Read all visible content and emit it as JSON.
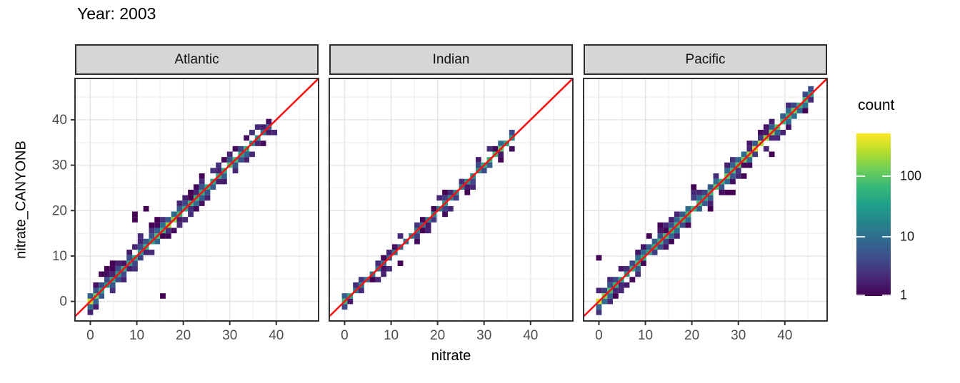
{
  "title": "Year: 2003",
  "axes": {
    "x": {
      "label": "nitrate",
      "ticks": [
        0,
        10,
        20,
        30,
        40
      ],
      "range": [
        -3.3,
        49.1
      ]
    },
    "y": {
      "label": "nitrate_CANYONB",
      "ticks": [
        0,
        10,
        20,
        30,
        40
      ],
      "range": [
        -4.3,
        49.1
      ]
    }
  },
  "legend": {
    "title": "count",
    "scale": "log10",
    "max": 500,
    "ticks": [
      {
        "label": "100",
        "value": 100
      },
      {
        "label": "10",
        "value": 10
      },
      {
        "label": "1",
        "value": 1
      }
    ]
  },
  "colors": {
    "identity_line": "#f51414",
    "panel_border": "#333333",
    "strip_fill": "#d6d6d6",
    "strip_border": "#2e2e2e",
    "grid_major": "#e3e3e3",
    "grid_minor": "#eeeeee",
    "axis_text": "#4d4d4d",
    "tick_mark": "#333333",
    "viridis": [
      "#440154",
      "#482878",
      "#3e4989",
      "#31688e",
      "#26828e",
      "#1f9e89",
      "#35b779",
      "#6ece58",
      "#b5de2b",
      "#fde725"
    ]
  },
  "chart_data": {
    "type": "heatmap",
    "description": "2D bin counts of nitrate_CANYONB vs nitrate per ocean basin, viridis log10 colour scale, red y=x identity line",
    "facet_variable": "ocean",
    "binwidth": 1.2,
    "count_max": 500,
    "identity_line": "y = x",
    "facets": [
      {
        "name": "Atlantic",
        "seed": 11,
        "diagonal_range": [
          -0.6,
          38.4
        ],
        "flank": 0.9,
        "far": 0.5,
        "wide": 0.3,
        "spine": [
          [
            -0.6,
            450
          ],
          [
            0.6,
            200
          ],
          [
            2,
            60
          ],
          [
            4,
            35
          ],
          [
            6,
            40
          ],
          [
            8,
            55
          ],
          [
            10,
            45
          ],
          [
            12,
            50
          ],
          [
            14,
            60
          ],
          [
            16,
            90
          ],
          [
            17.4,
            280
          ],
          [
            18.6,
            80
          ],
          [
            20,
            60
          ],
          [
            22,
            55
          ],
          [
            24,
            45
          ],
          [
            26,
            50
          ],
          [
            28,
            60
          ],
          [
            30,
            65
          ],
          [
            32,
            60
          ],
          [
            34,
            45
          ],
          [
            36,
            20
          ],
          [
            38.4,
            8
          ]
        ],
        "outliers": [
          [
            15.6,
            1.4,
            1
          ],
          [
            9.8,
            17.6,
            1
          ],
          [
            9.2,
            18.8,
            1
          ],
          [
            12.2,
            20.6,
            1
          ],
          [
            5.2,
            8.0,
            1
          ],
          [
            4.0,
            7.4,
            1
          ],
          [
            2.8,
            6.2,
            1
          ],
          [
            14.6,
            18.2,
            1
          ],
          [
            11.0,
            14.6,
            2
          ],
          [
            37.4,
            34.6,
            1
          ],
          [
            24.2,
            27.8,
            1
          ]
        ]
      },
      {
        "name": "Indian",
        "seed": 23,
        "diagonal_range": [
          -0.6,
          35.4
        ],
        "flank": 0.55,
        "far": 0.15,
        "wide": 0.04,
        "spine": [
          [
            -0.6,
            90
          ],
          [
            0.6,
            140
          ],
          [
            2,
            25
          ],
          [
            4,
            10
          ],
          [
            6,
            8
          ],
          [
            8,
            10
          ],
          [
            10,
            8
          ],
          [
            12,
            9
          ],
          [
            14,
            10
          ],
          [
            16,
            12
          ],
          [
            18,
            14
          ],
          [
            20,
            18
          ],
          [
            21.5,
            35
          ],
          [
            23,
            20
          ],
          [
            25,
            15
          ],
          [
            27,
            25
          ],
          [
            29,
            40
          ],
          [
            31,
            70
          ],
          [
            32.5,
            110
          ],
          [
            34,
            60
          ],
          [
            35.4,
            25
          ]
        ],
        "outliers": [
          [
            12.2,
            7.8,
            1
          ],
          [
            20.6,
            22.6,
            2
          ],
          [
            21.2,
            23.8,
            1
          ],
          [
            22.4,
            24.4,
            2
          ],
          [
            26.0,
            24.4,
            1
          ],
          [
            33.2,
            31.0,
            1
          ],
          [
            6.2,
            4.6,
            1
          ]
        ]
      },
      {
        "name": "Pacific",
        "seed": 37,
        "diagonal_range": [
          -0.6,
          45.6
        ],
        "flank": 0.8,
        "far": 0.38,
        "wide": 0.16,
        "spine": [
          [
            -0.6,
            380
          ],
          [
            0.6,
            260
          ],
          [
            2,
            70
          ],
          [
            4,
            35
          ],
          [
            6,
            45
          ],
          [
            8,
            50
          ],
          [
            10,
            55
          ],
          [
            12,
            60
          ],
          [
            14,
            65
          ],
          [
            16,
            75
          ],
          [
            18,
            80
          ],
          [
            20,
            85
          ],
          [
            22,
            70
          ],
          [
            24,
            60
          ],
          [
            26,
            70
          ],
          [
            28,
            80
          ],
          [
            30,
            90
          ],
          [
            32,
            130
          ],
          [
            34,
            260
          ],
          [
            35,
            300
          ],
          [
            36,
            160
          ],
          [
            38,
            90
          ],
          [
            40,
            70
          ],
          [
            42,
            85
          ],
          [
            44,
            70
          ],
          [
            45.6,
            25
          ]
        ],
        "outliers": [
          [
            0.4,
            9.4,
            1
          ],
          [
            20.4,
            23.2,
            3
          ],
          [
            20.4,
            24.4,
            2
          ],
          [
            20.2,
            25.2,
            1
          ],
          [
            21.4,
            24.0,
            2
          ],
          [
            24.2,
            19.8,
            1
          ],
          [
            27.8,
            23.8,
            1
          ],
          [
            29.2,
            23.8,
            1
          ],
          [
            31.2,
            27.0,
            1
          ],
          [
            36.8,
            31.8,
            1
          ],
          [
            3.4,
            1.0,
            1
          ],
          [
            46.0,
            44.6,
            2
          ],
          [
            44.6,
            41.8,
            1
          ]
        ]
      }
    ]
  }
}
